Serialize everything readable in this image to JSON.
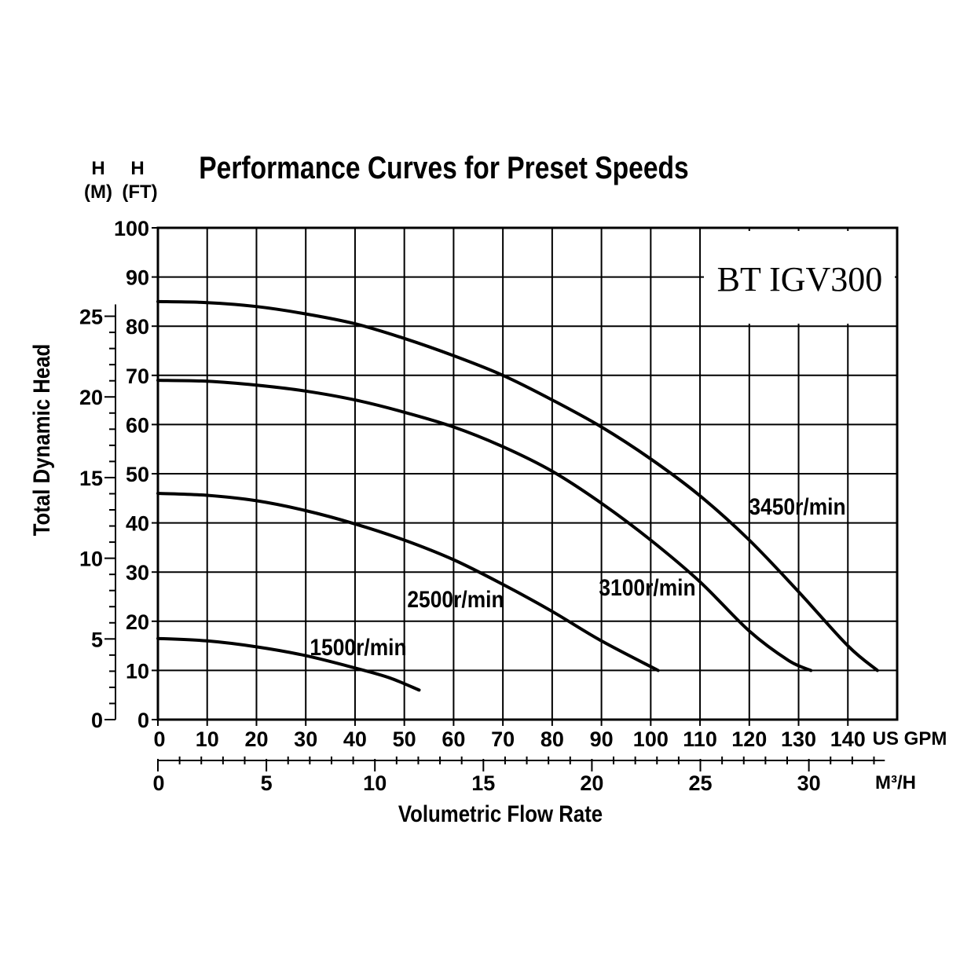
{
  "chart_data": {
    "type": "line",
    "title": "Performance Curves for Preset Speeds",
    "model": "BT IGV300",
    "ylabel": "Total Dynamic Head",
    "xlabel": "Volumetric Flow Rate",
    "y_left_unit_top": "H",
    "y_left_unit_bottom": "(M)",
    "y_right_unit_top": "H",
    "y_right_unit_bottom": "(FT)",
    "x_primary_unit": "US GPM",
    "x_secondary_unit": "M³/H",
    "xlim": [
      0,
      150
    ],
    "ylim": [
      0,
      100
    ],
    "grid": true,
    "y_ft_ticks": [
      "0",
      "10",
      "20",
      "30",
      "40",
      "50",
      "60",
      "70",
      "80",
      "90",
      "100"
    ],
    "y_m_ticks": [
      "0",
      "5",
      "10",
      "15",
      "20",
      "25"
    ],
    "x_gpm_ticks": [
      "0",
      "10",
      "20",
      "30",
      "40",
      "50",
      "60",
      "70",
      "80",
      "90",
      "100",
      "110",
      "120",
      "130",
      "140"
    ],
    "x_m3h_ticks": [
      "0",
      "5",
      "10",
      "15",
      "20",
      "25",
      "30"
    ],
    "series": [
      {
        "name": "3450r/min",
        "x": [
          0,
          10,
          20,
          30,
          40,
          50,
          60,
          70,
          80,
          90,
          100,
          110,
          120,
          130,
          140,
          146
        ],
        "y": [
          85,
          84.8,
          84,
          82.5,
          80.5,
          77.5,
          74,
          70,
          65,
          59.5,
          53,
          45.5,
          36.5,
          26,
          15,
          10
        ]
      },
      {
        "name": "3100r/min",
        "x": [
          0,
          10,
          20,
          30,
          40,
          50,
          60,
          70,
          80,
          90,
          100,
          110,
          120,
          128,
          132.5
        ],
        "y": [
          69,
          68.8,
          68,
          66.8,
          65,
          62.5,
          59.5,
          55.5,
          50.5,
          44,
          36.5,
          28,
          18,
          12,
          10
        ]
      },
      {
        "name": "2500r/min",
        "x": [
          0,
          10,
          20,
          30,
          40,
          50,
          60,
          70,
          80,
          90,
          101.5
        ],
        "y": [
          46,
          45.6,
          44.5,
          42.5,
          39.8,
          36.5,
          32.5,
          27.5,
          22,
          16,
          10
        ]
      },
      {
        "name": "1500r/min",
        "x": [
          0,
          10,
          20,
          30,
          40,
          47,
          53
        ],
        "y": [
          16.5,
          16,
          14.8,
          13,
          10.5,
          8.5,
          6
        ]
      }
    ]
  }
}
